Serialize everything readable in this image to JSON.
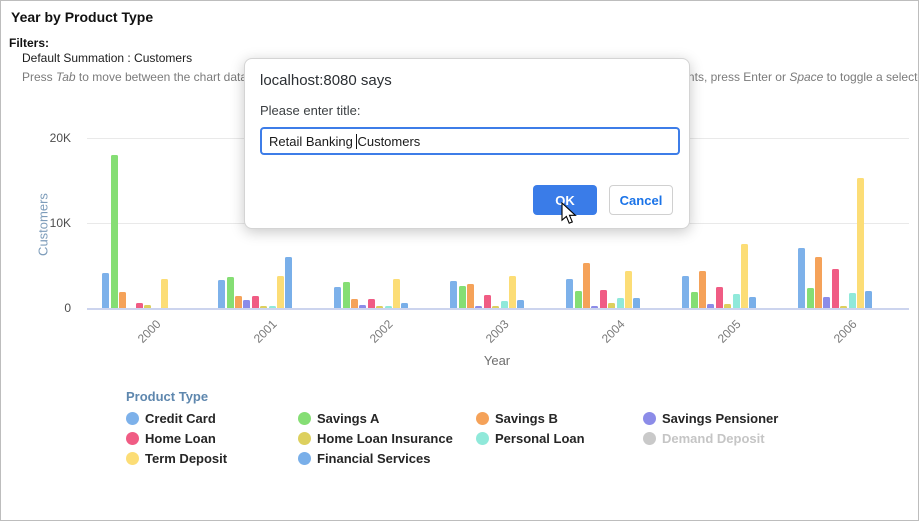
{
  "header": {
    "title": "Year by Product Type",
    "filters_label": "Filters:",
    "filter_value": "Default Summation : Customers",
    "hint": {
      "pre": "Press ",
      "tab_key": "Tab",
      "mid": " to move between the chart data, legend items and other chart elements. Use arrow keys to move between data points, press Enter or ",
      "space_key": "Space",
      "post": " to toggle a selected legend item"
    }
  },
  "dialog": {
    "source": "localhost:8080 says",
    "prompt": "Please enter title:",
    "input_value": "Retail Banking Customers",
    "caret_index": 15,
    "ok_label": "OK",
    "cancel_label": "Cancel",
    "accent_color": "#3a7ce8",
    "cancel_text_color": "#1a73e8",
    "input_border_color": "#3d7de8"
  },
  "chart_data": {
    "type": "bar",
    "title": "Year by Product Type",
    "xlabel": "Year",
    "ylabel": "Customers",
    "categories": [
      "2000",
      "2001",
      "2002",
      "2003",
      "2004",
      "2005",
      "2006"
    ],
    "ylim": [
      0,
      20000
    ],
    "yticks": [
      {
        "label": "0",
        "value": 0
      },
      {
        "label": "10K",
        "value": 10000
      },
      {
        "label": "20K",
        "value": 20000
      }
    ],
    "grid": "horizontal",
    "legend_title": "Product Type",
    "legend_position": "bottom",
    "series": [
      {
        "name": "Credit Card",
        "color": "#7DB1EA",
        "disabled": false,
        "values": [
          4100,
          3300,
          2500,
          3200,
          3450,
          3800,
          7100
        ]
      },
      {
        "name": "Savings A",
        "color": "#85DE74",
        "disabled": false,
        "values": [
          18000,
          3700,
          3000,
          2550,
          2050,
          1850,
          2350
        ]
      },
      {
        "name": "Savings B",
        "color": "#F5A259",
        "disabled": false,
        "values": [
          1850,
          1450,
          1100,
          2800,
          5250,
          4400,
          6000
        ]
      },
      {
        "name": "Savings Pensioner",
        "color": "#8C8CE8",
        "disabled": false,
        "values": [
          0,
          900,
          300,
          280,
          200,
          420,
          1300
        ]
      },
      {
        "name": "Home Loan",
        "color": "#F05C84",
        "disabled": false,
        "values": [
          550,
          1400,
          1000,
          1550,
          2150,
          2450,
          4550
        ]
      },
      {
        "name": "Home Loan Insurance",
        "color": "#DDD05E",
        "disabled": false,
        "values": [
          330,
          200,
          180,
          250,
          600,
          450,
          250
        ]
      },
      {
        "name": "Personal Loan",
        "color": "#90E9DA",
        "disabled": false,
        "values": [
          0,
          220,
          150,
          780,
          1150,
          1700,
          1800
        ]
      },
      {
        "name": "Demand Deposit",
        "color": "#C9C9C9",
        "disabled": true,
        "values": [
          0,
          0,
          0,
          0,
          0,
          0,
          0
        ]
      },
      {
        "name": "Term Deposit",
        "color": "#FCDD76",
        "disabled": false,
        "values": [
          3400,
          3800,
          3400,
          3800,
          4300,
          7500,
          15300
        ]
      },
      {
        "name": "Financial Services",
        "color": "#79AFE9",
        "disabled": false,
        "values": [
          0,
          6000,
          620,
          980,
          1200,
          1250,
          2050
        ]
      }
    ]
  }
}
